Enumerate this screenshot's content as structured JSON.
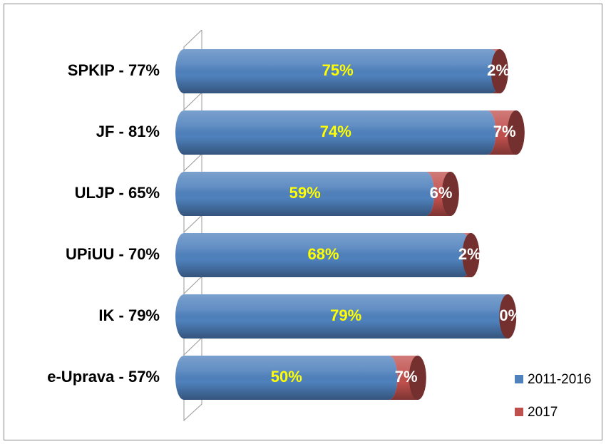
{
  "chart_data": {
    "type": "bar",
    "orientation": "horizontal",
    "stacked": true,
    "categories": [
      "SPKIP - 77%",
      "JF - 81%",
      "ULJP - 65%",
      "UPiUU - 70%",
      "IK - 79%",
      "e-Uprava - 57%"
    ],
    "series": [
      {
        "name": "2011-2016",
        "color": "#4f81bd",
        "label_color": "#ffff00",
        "values": [
          75,
          74,
          59,
          68,
          79,
          50
        ],
        "value_labels": [
          "75%",
          "74%",
          "59%",
          "68%",
          "79%",
          "50%"
        ]
      },
      {
        "name": "2017",
        "color": "#c0504d",
        "label_color": "#ffffff",
        "values": [
          2,
          7,
          6,
          2,
          0,
          7
        ],
        "value_labels": [
          "2%",
          "7%",
          "6%",
          "2%",
          "0%",
          "7%"
        ]
      }
    ],
    "xlim": [
      0,
      80
    ],
    "legend": "bottom-right"
  }
}
